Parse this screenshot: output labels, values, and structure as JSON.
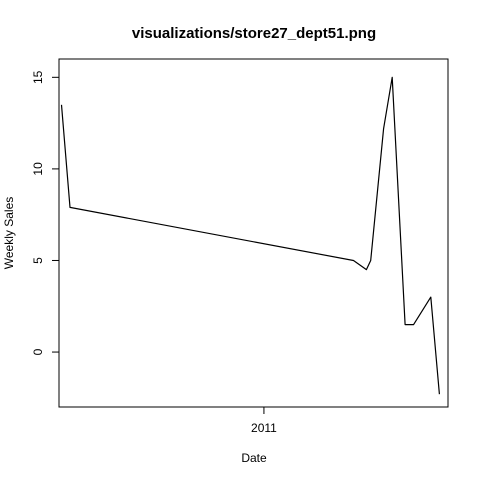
{
  "chart_data": {
    "type": "line",
    "title": "visualizations/store27_dept51.png",
    "xlabel": "Date",
    "ylabel": "Weekly Sales",
    "x_ticks": [
      {
        "value": "2011-01-01",
        "label": "2011"
      }
    ],
    "y_ticks": [
      0,
      5,
      10,
      15
    ],
    "xlim": [
      "2010-02-01",
      "2011-10-28"
    ],
    "ylim": [
      -3,
      16
    ],
    "grid": false,
    "series": [
      {
        "color": "#000000",
        "points": [
          {
            "x": "2010-02-05",
            "y": 13.5
          },
          {
            "x": "2010-02-19",
            "y": 7.9
          },
          {
            "x": "2011-05-27",
            "y": 5.0
          },
          {
            "x": "2011-06-17",
            "y": 4.5
          },
          {
            "x": "2011-06-24",
            "y": 5.0
          },
          {
            "x": "2011-07-15",
            "y": 12.2
          },
          {
            "x": "2011-07-29",
            "y": 15.0
          },
          {
            "x": "2011-08-19",
            "y": 1.5
          },
          {
            "x": "2011-09-02",
            "y": 1.5
          },
          {
            "x": "2011-09-30",
            "y": 3.0
          },
          {
            "x": "2011-10-14",
            "y": -2.3
          }
        ]
      }
    ]
  }
}
